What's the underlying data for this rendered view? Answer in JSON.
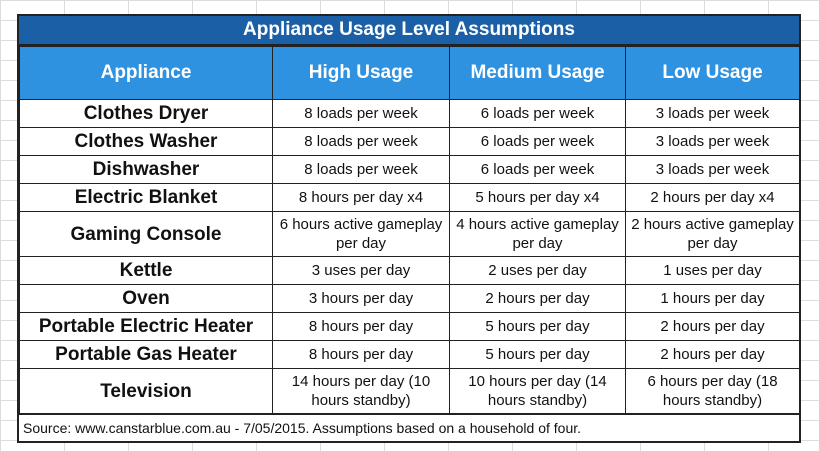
{
  "title": "Appliance Usage Level Assumptions",
  "headers": [
    "Appliance",
    "High Usage",
    "Medium Usage",
    "Low Usage"
  ],
  "rows": [
    {
      "appliance": "Clothes Dryer",
      "high": "8 loads per week",
      "medium": "6 loads per week",
      "low": "3 loads per week"
    },
    {
      "appliance": "Clothes Washer",
      "high": "8 loads per week",
      "medium": "6 loads per week",
      "low": "3 loads per week"
    },
    {
      "appliance": "Dishwasher",
      "high": "8 loads per week",
      "medium": "6 loads per week",
      "low": "3 loads per week"
    },
    {
      "appliance": "Electric Blanket",
      "high": "8 hours per day x4",
      "medium": "5 hours per day x4",
      "low": "2 hours per day x4"
    },
    {
      "appliance": "Gaming Console",
      "high": "6 hours active gameplay per day",
      "medium": "4 hours active gameplay per day",
      "low": "2 hours active gameplay per day"
    },
    {
      "appliance": "Kettle",
      "high": "3 uses per day",
      "medium": "2 uses per day",
      "low": "1 uses per day"
    },
    {
      "appliance": "Oven",
      "high": "3 hours per day",
      "medium": "2 hours per day",
      "low": "1 hours per day"
    },
    {
      "appliance": "Portable Electric Heater",
      "high": "8 hours per day",
      "medium": "5 hours per day",
      "low": "2 hours per day"
    },
    {
      "appliance": "Portable Gas Heater",
      "high": "8 hours per day",
      "medium": "5 hours per day",
      "low": "2 hours per day"
    },
    {
      "appliance": "Television",
      "high": "14 hours per day (10 hours standby)",
      "medium": "10 hours per day (14 hours standby)",
      "low": "6 hours per day (18 hours standby)"
    }
  ],
  "source": "Source: www.canstarblue.com.au - 7/05/2015. Assumptions based on a household of four.",
  "colors": {
    "title_bg": "#1b5fa6",
    "header_bg": "#2f92e0",
    "border": "#222222"
  }
}
